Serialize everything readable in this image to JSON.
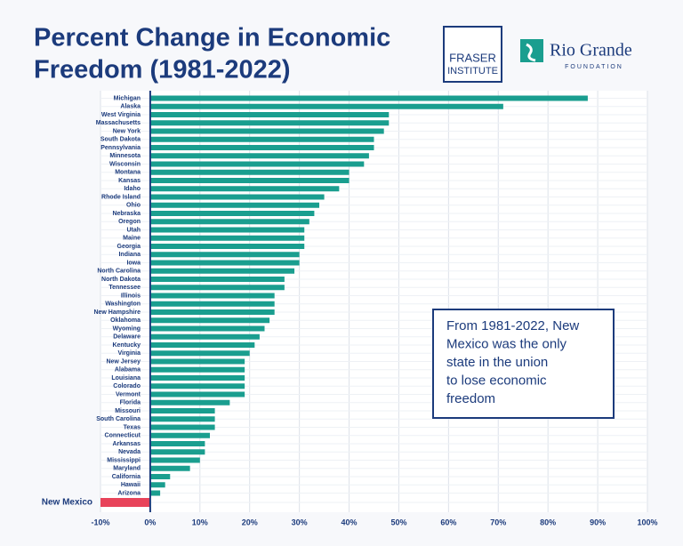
{
  "chart_data": {
    "type": "hbar",
    "title_lines": [
      "Percent Change in Economic",
      "Freedom (1981-2022)"
    ],
    "logos": {
      "fraser": [
        "FRASER",
        "INSTITUTE"
      ],
      "rio_grande": [
        "Rio Grande",
        "FOUNDATION"
      ]
    },
    "categories": [
      "Michigan",
      "Alaska",
      "West Virginia",
      "Massachusetts",
      "New York",
      "South Dakota",
      "Pennsylvania",
      "Minnesota",
      "Wisconsin",
      "Montana",
      "Kansas",
      "Idaho",
      "Rhode Island",
      "Ohio",
      "Nebraska",
      "Oregon",
      "Utah",
      "Maine",
      "Georgia",
      "Indiana",
      "Iowa",
      "North Carolina",
      "North Dakota",
      "Tennessee",
      "Illinois",
      "Washington",
      "New Hampshire",
      "Oklahoma",
      "Wyoming",
      "Delaware",
      "Kentucky",
      "Virginia",
      "New Jersey",
      "Alabama",
      "Louisiana",
      "Colorado",
      "Vermont",
      "Florida",
      "Missouri",
      "South Carolina",
      "Texas",
      "Connecticut",
      "Arkansas",
      "Nevada",
      "Mississippi",
      "Maryland",
      "California",
      "Hawaii",
      "Arizona",
      "New Mexico"
    ],
    "values": [
      88,
      71,
      48,
      48,
      47,
      45,
      45,
      44,
      43,
      40,
      40,
      38,
      35,
      34,
      33,
      32,
      31,
      31,
      31,
      30,
      30,
      29,
      27,
      27,
      25,
      25,
      25,
      24,
      23,
      22,
      21,
      20,
      19,
      19,
      19,
      19,
      19,
      16,
      13,
      13,
      13,
      12,
      11,
      11,
      10,
      8,
      4,
      3,
      2,
      -10
    ],
    "color": "#1a9e8f",
    "negative_color": "#e8435a",
    "xlim": [
      -10,
      100
    ],
    "xticks": [
      {
        "value": -10,
        "label": "-10%"
      },
      {
        "value": 0,
        "label": "0%"
      },
      {
        "value": 10,
        "label": "10%"
      },
      {
        "value": 20,
        "label": "20%"
      },
      {
        "value": 30,
        "label": "30%"
      },
      {
        "value": 40,
        "label": "40%"
      },
      {
        "value": 50,
        "label": "50%"
      },
      {
        "value": 60,
        "label": "60%"
      },
      {
        "value": 70,
        "label": "70%"
      },
      {
        "value": 80,
        "label": "80%"
      },
      {
        "value": 90,
        "label": "90%"
      },
      {
        "value": 100,
        "label": "100%"
      }
    ],
    "grid": true,
    "annotation": [
      "From 1981-2022, New",
      "Mexico was the only",
      "state in the union",
      "to lose economic",
      "freedom"
    ]
  }
}
